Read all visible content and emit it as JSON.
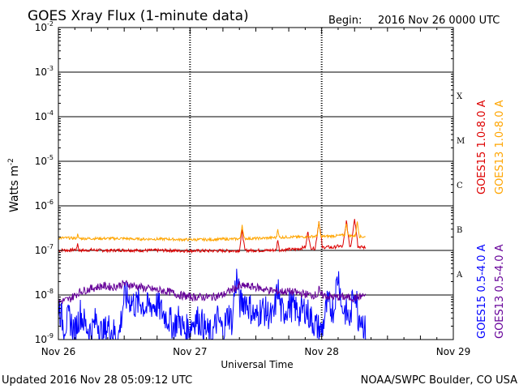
{
  "header": {
    "title": "GOES Xray Flux (1-minute data)",
    "begin_label": "Begin:",
    "begin_value": "2016 Nov 26 0000 UTC"
  },
  "footer": {
    "updated": "Updated 2016 Nov 28 05:09:12 UTC",
    "credit": "NOAA/SWPC Boulder, CO USA"
  },
  "chart_data": {
    "type": "line",
    "title": "GOES Xray Flux (1-minute data)",
    "xlabel": "Universal Time",
    "ylabel": "Watts m",
    "ylabel_exponent": "-2",
    "yscale": "log",
    "ylim": [
      1e-09,
      0.01
    ],
    "xlim_hours": [
      0,
      72
    ],
    "x_ticks": [
      {
        "hour": 0,
        "label": "Nov 26"
      },
      {
        "hour": 24,
        "label": "Nov 27"
      },
      {
        "hour": 48,
        "label": "Nov 28"
      },
      {
        "hour": 72,
        "label": "Nov 29"
      }
    ],
    "y_ticks": [
      {
        "value": 1e-09,
        "base": "10",
        "exp": "-9"
      },
      {
        "value": 1e-08,
        "base": "10",
        "exp": "-8"
      },
      {
        "value": 1e-07,
        "base": "10",
        "exp": "-7"
      },
      {
        "value": 1e-06,
        "base": "10",
        "exp": "-6"
      },
      {
        "value": 1e-05,
        "base": "10",
        "exp": "-5"
      },
      {
        "value": 0.0001,
        "base": "10",
        "exp": "-4"
      },
      {
        "value": 0.001,
        "base": "10",
        "exp": "-3"
      },
      {
        "value": 0.01,
        "base": "10",
        "exp": "-2"
      }
    ],
    "flare_classes": [
      {
        "label": "A",
        "value": 3e-08
      },
      {
        "label": "B",
        "value": 3e-07
      },
      {
        "label": "C",
        "value": 3e-06
      },
      {
        "label": "M",
        "value": 3e-05
      },
      {
        "label": "X",
        "value": 0.0003
      }
    ],
    "series": [
      {
        "name": "GOES15 1.0-8.0 A",
        "color": "#dd0000",
        "x": [
          0,
          1,
          2,
          3,
          4,
          5,
          6,
          8,
          10,
          12,
          14,
          16,
          18,
          20,
          22,
          24,
          26,
          28,
          30,
          32,
          34,
          35,
          36,
          38,
          40,
          42,
          43,
          44,
          45,
          46,
          47,
          47.5,
          48,
          49,
          50,
          51,
          52,
          53,
          54,
          55,
          56
        ],
        "y": [
          1e-07,
          1.02e-07,
          1e-07,
          1.05e-07,
          1e-07,
          1e-07,
          1.03e-07,
          1e-07,
          1e-07,
          1.02e-07,
          1e-07,
          1e-07,
          1e-07,
          1e-07,
          9.8e-08,
          9.8e-08,
          9.8e-08,
          9.8e-08,
          9.8e-08,
          9.8e-08,
          1e-07,
          1e-07,
          1e-07,
          1e-07,
          1.02e-07,
          1.05e-07,
          1.05e-07,
          1.1e-07,
          1.2e-07,
          1.15e-07,
          1.1e-07,
          1.2e-07,
          1.15e-07,
          1.2e-07,
          1.15e-07,
          1.25e-07,
          1.2e-07,
          1.3e-07,
          1.25e-07,
          1.2e-07,
          1.15e-07
        ]
      },
      {
        "name": "GOES13 1.0-8.0 A",
        "color": "#ffa500",
        "x": [
          0,
          2,
          4,
          6,
          8,
          10,
          12,
          14,
          16,
          18,
          20,
          22,
          24,
          26,
          28,
          30,
          32,
          34,
          36,
          38,
          40,
          42,
          44,
          46,
          47.5,
          48,
          50,
          52,
          54,
          56
        ],
        "y": [
          1.9e-07,
          1.9e-07,
          1.85e-07,
          1.85e-07,
          1.85e-07,
          1.85e-07,
          1.85e-07,
          1.8e-07,
          1.8e-07,
          1.8e-07,
          1.8e-07,
          1.75e-07,
          1.75e-07,
          1.75e-07,
          1.75e-07,
          1.8e-07,
          1.8e-07,
          1.85e-07,
          1.85e-07,
          1.9e-07,
          1.95e-07,
          2e-07,
          2e-07,
          2.05e-07,
          2.1e-07,
          2.05e-07,
          2.1e-07,
          2.2e-07,
          2.1e-07,
          2e-07
        ]
      },
      {
        "name": "GOES15 0.5-4.0 A",
        "color": "#0000ff",
        "x": [
          0,
          1,
          2,
          3,
          4,
          5,
          6,
          7,
          8,
          9,
          10,
          11,
          12,
          13,
          14,
          15,
          16,
          17,
          18,
          19,
          20,
          21,
          22,
          23,
          24,
          25,
          26,
          27,
          28,
          29,
          30,
          31,
          32,
          33,
          34,
          35,
          36,
          37,
          38,
          39,
          40,
          41,
          42,
          43,
          44,
          45,
          46,
          47,
          48,
          49,
          50,
          51,
          52,
          53,
          54,
          55,
          56
        ],
        "y": [
          6e-09,
          2e-09,
          3e-09,
          1.5e-09,
          4e-09,
          2e-09,
          1.5e-09,
          3e-09,
          1.2e-09,
          2e-09,
          1.5e-09,
          1.2e-09,
          9e-09,
          8e-09,
          6e-09,
          7e-09,
          5e-09,
          6e-09,
          6e-09,
          4e-09,
          3e-09,
          2e-09,
          3e-09,
          1.5e-09,
          2e-09,
          3e-09,
          2.5e-09,
          1.5e-09,
          1.2e-09,
          3e-09,
          1.5e-09,
          4e-09,
          2e-09,
          6e-09,
          8e-09,
          5e-09,
          3e-09,
          5e-09,
          4e-09,
          3e-09,
          5e-09,
          4e-09,
          6e-09,
          5e-09,
          4e-09,
          5e-09,
          3e-09,
          2e-09,
          1.5e-09,
          6e-09,
          5e-09,
          4e-09,
          5e-09,
          3e-09,
          2e-09,
          4e-09,
          1.5e-09
        ]
      },
      {
        "name": "GOES13 0.5-4.0 A",
        "color": "#660099",
        "x": [
          0,
          2,
          4,
          6,
          8,
          10,
          12,
          14,
          16,
          18,
          20,
          22,
          24,
          26,
          28,
          30,
          32,
          34,
          36,
          38,
          40,
          42,
          44,
          46,
          48,
          50,
          52,
          54,
          56
        ],
        "y": [
          7e-09,
          8e-09,
          1.2e-08,
          1.4e-08,
          1.6e-08,
          1.5e-08,
          1.8e-08,
          1.6e-08,
          1.4e-08,
          1.3e-08,
          1.2e-08,
          1e-08,
          9e-09,
          9e-09,
          9e-09,
          1e-08,
          1.4e-08,
          1.6e-08,
          1.5e-08,
          1.3e-08,
          1.2e-08,
          1.2e-08,
          1.1e-08,
          1e-08,
          1e-08,
          9e-09,
          9e-09,
          8.5e-09,
          1e-08
        ]
      }
    ],
    "flares": [
      {
        "series": 0,
        "hour": 3.5,
        "peak": 1.5e-07
      },
      {
        "series": 0,
        "hour": 33.5,
        "peak": 2.8e-07
      },
      {
        "series": 0,
        "hour": 40,
        "peak": 1.8e-07
      },
      {
        "series": 0,
        "hour": 45.5,
        "peak": 2.8e-07
      },
      {
        "series": 0,
        "hour": 47.5,
        "peak": 4.5e-07
      },
      {
        "series": 0,
        "hour": 52.5,
        "peak": 4.5e-07
      },
      {
        "series": 0,
        "hour": 54,
        "peak": 5.2e-07
      },
      {
        "series": 1,
        "hour": 3.5,
        "peak": 2.5e-07
      },
      {
        "series": 1,
        "hour": 33.5,
        "peak": 3.8e-07
      },
      {
        "series": 1,
        "hour": 40,
        "peak": 3.2e-07
      },
      {
        "series": 1,
        "hour": 47.5,
        "peak": 4.2e-07
      },
      {
        "series": 1,
        "hour": 52.5,
        "peak": 4.2e-07
      },
      {
        "series": 1,
        "hour": 54.5,
        "peak": 4.5e-07
      },
      {
        "series": 2,
        "hour": 32.5,
        "peak": 2.5e-08
      },
      {
        "series": 2,
        "hour": 40,
        "peak": 1.5e-08
      },
      {
        "series": 2,
        "hour": 51,
        "peak": 3e-08
      },
      {
        "series": 2,
        "hour": 54,
        "peak": 1.6e-08
      },
      {
        "series": 3,
        "hour": 33,
        "peak": 1.8e-08
      },
      {
        "series": 3,
        "hour": 47.5,
        "peak": 1.5e-08
      }
    ]
  }
}
